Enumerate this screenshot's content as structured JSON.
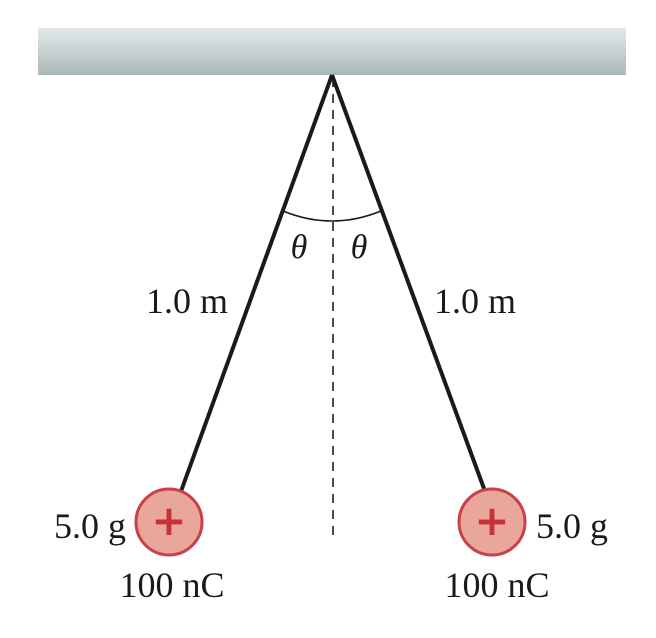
{
  "diagram": {
    "left_string_length": "1.0 m",
    "right_string_length": "1.0 m",
    "angle_left": "θ",
    "angle_right": "θ",
    "left_ball": {
      "mass": "5.0 g",
      "charge": "100 nC",
      "sign": "+"
    },
    "right_ball": {
      "mass": "5.0 g",
      "charge": "100 nC",
      "sign": "+"
    },
    "colors": {
      "ceiling_top": "#a9b8b7",
      "ceiling_bottom": "#e4eaea",
      "string": "#1a1a1a",
      "ball_fill": "#e8a79a",
      "ball_stroke": "#c8404a",
      "plus": "#c8303a"
    }
  }
}
